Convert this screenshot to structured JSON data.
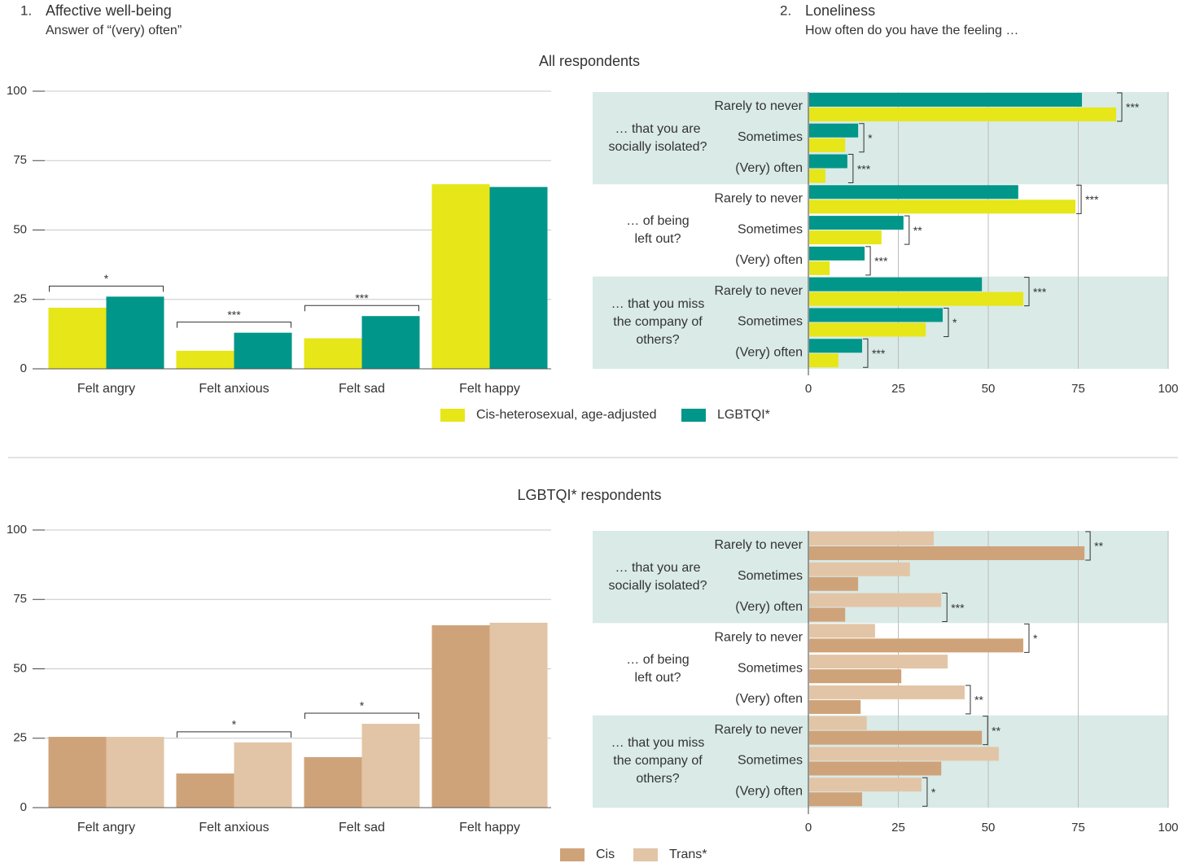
{
  "chart_data": [
    {
      "type": "bar",
      "number": "1.",
      "title": "Affective well-being",
      "subtitle": "Answer of “(very) often”",
      "heading": "All respondents",
      "categories": [
        "Felt angry",
        "Felt anxious",
        "Felt sad",
        "Felt happy"
      ],
      "series": [
        {
          "name": "Cis-heterosexual, age-adjusted",
          "color": "#e6e619",
          "values": [
            22,
            6.5,
            11,
            66.5
          ]
        },
        {
          "name": "LGBTQI*",
          "color": "#00968a",
          "values": [
            26,
            13,
            19,
            65.5
          ]
        }
      ],
      "significance": [
        "*",
        "***",
        "***",
        null
      ],
      "ylim": [
        0,
        100
      ],
      "yticks": [
        0,
        25,
        50,
        75,
        100
      ],
      "grid": true
    },
    {
      "type": "hbar",
      "number": "2.",
      "title": "Loneliness",
      "subtitle": "How often do you have the feeling …",
      "groups": [
        "… that you are socially isolated?",
        "… of being left out?",
        "… that you miss the company of others?"
      ],
      "categories": [
        "Rarely to never",
        "Sometimes",
        "(Very) often",
        "Rarely to never",
        "Sometimes",
        "(Very) often",
        "Rarely to never",
        "Sometimes",
        "(Very) often"
      ],
      "series": [
        {
          "color": "#00968a",
          "values": [
            75.8,
            13.6,
            10.6,
            58.1,
            26.2,
            15.4,
            48,
            37.1,
            14.7
          ]
        },
        {
          "color": "#e6e619",
          "values": [
            85.3,
            10,
            4.5,
            74,
            20.1,
            5.7,
            59.5,
            32.4,
            8.1
          ]
        }
      ],
      "significance": [
        "***",
        "*",
        "***",
        "***",
        "**",
        "***",
        "***",
        "*",
        "***"
      ],
      "xlim": [
        0,
        100
      ],
      "xticks": [
        0,
        25,
        50,
        75,
        100
      ],
      "grid": true
    },
    {
      "type": "bar",
      "heading": "LGBTQI* respondents",
      "categories": [
        "Felt angry",
        "Felt anxious",
        "Felt sad",
        "Felt happy"
      ],
      "series": [
        {
          "name": "Cis",
          "color": "#cfa37a",
          "values": [
            25.5,
            12.3,
            18.2,
            65.7
          ]
        },
        {
          "name": "Trans*",
          "color": "#e2c5a6",
          "values": [
            25.5,
            23.5,
            30.2,
            66.6
          ]
        }
      ],
      "significance": [
        null,
        "*",
        "*",
        null
      ],
      "ylim": [
        0,
        100
      ],
      "yticks": [
        0,
        25,
        50,
        75,
        100
      ],
      "grid": true
    },
    {
      "type": "hbar",
      "groups": [
        "… that you are socially isolated?",
        "… of being left out?",
        "… that you miss the company of others?"
      ],
      "categories": [
        "Rarely to never",
        "Sometimes",
        "(Very) often",
        "Rarely to never",
        "Sometimes",
        "(Very) often",
        "Rarely to never",
        "Sometimes",
        "(Very) often"
      ],
      "series": [
        {
          "color": "#e2c5a6",
          "values": [
            34.6,
            28,
            36.7,
            18.3,
            38.5,
            43.2,
            16,
            52.7,
            31.2
          ]
        },
        {
          "color": "#cfa37a",
          "values": [
            76.5,
            13.6,
            10,
            59.5,
            25.6,
            14.3,
            48,
            36.7,
            14.7
          ]
        }
      ],
      "significance": [
        "**",
        null,
        "***",
        "*",
        null,
        "**",
        "**",
        null,
        "*"
      ],
      "xlim": [
        0,
        100
      ],
      "xticks": [
        0,
        25,
        50,
        75,
        100
      ],
      "grid": true
    }
  ]
}
